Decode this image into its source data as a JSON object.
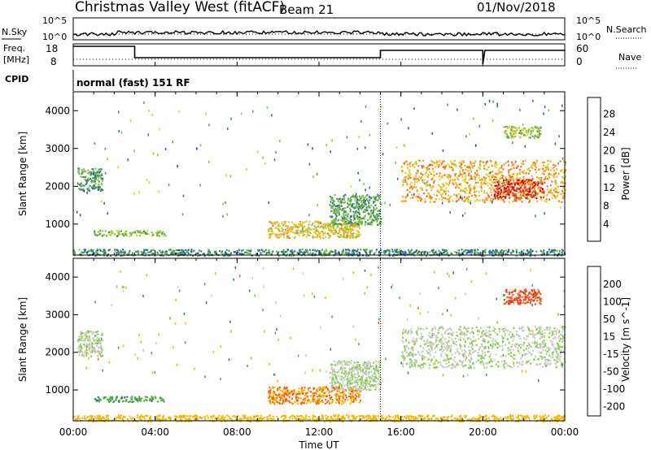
{
  "header": {
    "station": "Christmas Valley West (fitACF)",
    "beam": "Beam 21",
    "date": "01/Nov/2018"
  },
  "top_panel": {
    "left_label": "N.Sky",
    "left_ticks": [
      "10^5",
      "10^0"
    ],
    "right_ticks": [
      "10^5",
      "10^0"
    ],
    "right_label": "N.Search"
  },
  "freq_panel": {
    "left_label_1": "Freq.",
    "left_label_2": "[MHz]",
    "left_ticks": [
      "18",
      "8"
    ],
    "right_ticks": [
      "60",
      "0"
    ],
    "right_label": "Nave"
  },
  "cpid": {
    "label": "CPID",
    "value": "normal (fast) 151 RF"
  },
  "axes": {
    "x_label": "Time UT",
    "x_ticks": [
      "00:00",
      "04:00",
      "08:00",
      "12:00",
      "16:00",
      "20:00",
      "00:00"
    ],
    "y_label": "Slant Range [km]",
    "y_ticks": [
      "1000",
      "2000",
      "3000",
      "4000"
    ]
  },
  "power_colorbar": {
    "label": "Power [dB]",
    "ticks": [
      "4",
      "8",
      "12",
      "16",
      "20",
      "24",
      "28"
    ],
    "colors": [
      "#1a1aff",
      "#2a4fb0",
      "#2e7a70",
      "#4f9c5a",
      "#86c142",
      "#d7d42a",
      "#f5a623",
      "#f07020",
      "#e83a18",
      "#d40000"
    ]
  },
  "velocity_colorbar": {
    "label": "Velocity [m s^-1]",
    "ticks": [
      "200",
      "100",
      "50",
      "15",
      "-15",
      "-50",
      "-100",
      "-200"
    ],
    "colors": [
      "#1a1aff",
      "#2a4fb0",
      "#2e7a70",
      "#46a84a",
      "#7ccf3a",
      "#c8c8c0",
      "#f5b800",
      "#f59000",
      "#f06010",
      "#e83020",
      "#d40000"
    ]
  },
  "chart_data": [
    {
      "type": "heatmap",
      "title": "",
      "xlabel": "Time UT",
      "ylabel": "Slant Range [km]",
      "xlim": [
        0,
        24
      ],
      "ylim": [
        180,
        4500
      ],
      "colorbar": "Power [dB]",
      "regions": [
        {
          "t": [
            1.0,
            4.5
          ],
          "r": [
            700,
            850
          ],
          "value": 14
        },
        {
          "t": [
            0.2,
            1.4
          ],
          "r": [
            1900,
            2500
          ],
          "value": 12
        },
        {
          "t": [
            9.5,
            14.0
          ],
          "r": [
            650,
            1100
          ],
          "value": 18
        },
        {
          "t": [
            12.5,
            15.0
          ],
          "r": [
            1000,
            1800
          ],
          "value": 12
        },
        {
          "t": [
            16.0,
            24.0
          ],
          "r": [
            1600,
            2700
          ],
          "value": 20
        },
        {
          "t": [
            20.5,
            23.0
          ],
          "r": [
            1700,
            2200
          ],
          "value": 26
        },
        {
          "t": [
            21.0,
            22.8
          ],
          "r": [
            3300,
            3600
          ],
          "value": 16
        },
        {
          "t": [
            0.0,
            24.0
          ],
          "r": [
            180,
            350
          ],
          "value": 10
        }
      ]
    },
    {
      "type": "heatmap",
      "title": "",
      "xlabel": "Time UT",
      "ylabel": "Slant Range [km]",
      "xlim": [
        0,
        24
      ],
      "ylim": [
        180,
        4500
      ],
      "colorbar": "Velocity [m s^-1]",
      "regions": [
        {
          "t": [
            1.0,
            4.5
          ],
          "r": [
            700,
            850
          ],
          "value": 30
        },
        {
          "t": [
            0.2,
            1.4
          ],
          "r": [
            1900,
            2600
          ],
          "value": 0
        },
        {
          "t": [
            9.5,
            14.0
          ],
          "r": [
            650,
            1100
          ],
          "value": -50
        },
        {
          "t": [
            12.5,
            15.0
          ],
          "r": [
            1000,
            1800
          ],
          "value": 0
        },
        {
          "t": [
            16.0,
            24.0
          ],
          "r": [
            1600,
            2700
          ],
          "value": 0
        },
        {
          "t": [
            21.0,
            22.8
          ],
          "r": [
            3300,
            3700
          ],
          "value": -100
        },
        {
          "t": [
            0.0,
            24.0
          ],
          "r": [
            180,
            350
          ],
          "value": -30
        }
      ]
    }
  ]
}
